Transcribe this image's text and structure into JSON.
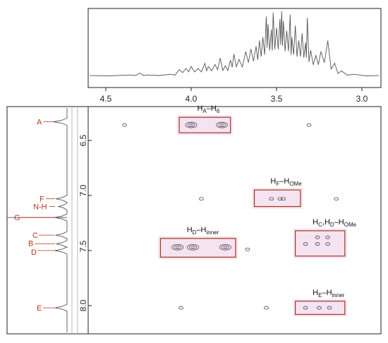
{
  "chart_data": {
    "type": "contour",
    "title": "",
    "xlabel": "",
    "ylabel": "",
    "x_axis": {
      "range": [
        4.62,
        2.9
      ],
      "ticks": [
        "4.5",
        "4.0",
        "3.5",
        "3.0"
      ],
      "tick_values": [
        4.5,
        4.0,
        3.5,
        3.0
      ]
    },
    "y_axis": {
      "range": [
        6.22,
        8.2
      ],
      "ticks": [
        "6.5",
        "7.0",
        "7.5",
        "8.0"
      ],
      "tick_values": [
        6.5,
        7.0,
        7.5,
        8.0
      ]
    },
    "grid": false,
    "top_projection": [
      [
        4.62,
        0.01
      ],
      [
        4.35,
        0.02
      ],
      [
        4.3,
        0.05
      ],
      [
        4.26,
        0.02
      ],
      [
        4.12,
        0.03
      ],
      [
        4.07,
        0.1
      ],
      [
        4.03,
        0.12
      ],
      [
        4.0,
        0.15
      ],
      [
        3.96,
        0.12
      ],
      [
        3.92,
        0.2
      ],
      [
        3.9,
        0.15
      ],
      [
        3.86,
        0.18
      ],
      [
        3.83,
        0.28
      ],
      [
        3.8,
        0.16
      ],
      [
        3.77,
        0.25
      ],
      [
        3.75,
        0.34
      ],
      [
        3.72,
        0.26
      ],
      [
        3.68,
        0.38
      ],
      [
        3.65,
        0.42
      ],
      [
        3.62,
        0.46
      ],
      [
        3.6,
        0.55
      ],
      [
        3.58,
        0.6
      ],
      [
        3.56,
        0.92
      ],
      [
        3.55,
        0.8
      ],
      [
        3.53,
        0.72
      ],
      [
        3.52,
        0.98
      ],
      [
        3.5,
        0.75
      ],
      [
        3.48,
        0.88
      ],
      [
        3.47,
        1.0
      ],
      [
        3.46,
        0.85
      ],
      [
        3.44,
        0.7
      ],
      [
        3.42,
        0.95
      ],
      [
        3.41,
        0.6
      ],
      [
        3.39,
        0.78
      ],
      [
        3.37,
        0.55
      ],
      [
        3.35,
        0.66
      ],
      [
        3.33,
        0.52
      ],
      [
        3.32,
        0.9
      ],
      [
        3.3,
        0.4
      ],
      [
        3.27,
        0.32
      ],
      [
        3.24,
        0.38
      ],
      [
        3.2,
        0.55
      ],
      [
        3.16,
        0.2
      ],
      [
        3.12,
        0.08
      ],
      [
        3.05,
        0.03
      ],
      [
        2.9,
        0.01
      ]
    ],
    "left_projection": {
      "peaks": [
        {
          "label": "A",
          "ppm": 6.33
        },
        {
          "label": "F",
          "ppm": 7.03
        },
        {
          "label": "N-H",
          "ppm": 7.1
        },
        {
          "label": "G",
          "ppm": 7.2
        },
        {
          "label": "C",
          "ppm": 7.36
        },
        {
          "label": "B",
          "ppm": 7.44
        },
        {
          "label": "D",
          "ppm": 7.5
        },
        {
          "label": "E",
          "ppm": 8.02
        }
      ]
    },
    "cross_peaks": [
      {
        "x": 4.39,
        "y": 6.36
      },
      {
        "x": 4.0,
        "y": 6.36
      },
      {
        "x": 3.82,
        "y": 6.36
      },
      {
        "x": 3.31,
        "y": 6.36
      },
      {
        "x": 3.94,
        "y": 7.03
      },
      {
        "x": 3.53,
        "y": 7.03
      },
      {
        "x": 3.48,
        "y": 7.03
      },
      {
        "x": 3.46,
        "y": 7.03
      },
      {
        "x": 3.15,
        "y": 7.03
      },
      {
        "x": 3.26,
        "y": 7.38
      },
      {
        "x": 3.2,
        "y": 7.38
      },
      {
        "x": 3.33,
        "y": 7.44
      },
      {
        "x": 3.26,
        "y": 7.44
      },
      {
        "x": 3.2,
        "y": 7.44
      },
      {
        "x": 4.08,
        "y": 7.47
      },
      {
        "x": 3.99,
        "y": 7.47
      },
      {
        "x": 3.8,
        "y": 7.47
      },
      {
        "x": 3.67,
        "y": 7.49
      },
      {
        "x": 4.06,
        "y": 8.02
      },
      {
        "x": 3.56,
        "y": 8.02
      },
      {
        "x": 3.33,
        "y": 8.02
      },
      {
        "x": 3.25,
        "y": 8.02
      },
      {
        "x": 3.19,
        "y": 8.02
      }
    ],
    "highlight_boxes": [
      {
        "label_main": "H",
        "label_sub1": "A",
        "label_mid": "–H",
        "label_sub2": "6",
        "x_range": [
          4.07,
          3.77
        ],
        "y_range": [
          6.29,
          6.43
        ]
      },
      {
        "label_main": "H",
        "label_sub1": "F",
        "label_mid": "–H",
        "label_sub2": "OMe",
        "x_range": [
          3.63,
          3.36
        ],
        "y_range": [
          6.95,
          7.1
        ]
      },
      {
        "label_main": "H",
        "label_sub1": "D",
        "label_mid": "–H",
        "label_sub2": "inner",
        "x_range": [
          4.18,
          3.74
        ],
        "y_range": [
          7.39,
          7.56
        ]
      },
      {
        "label_main": "H",
        "label_sub1": "C",
        "label_mid": ",H",
        "label_sub1b": "D",
        "label_mid2": "–H",
        "label_sub2": "OMe",
        "x_range": [
          3.39,
          3.1
        ],
        "y_range": [
          7.32,
          7.55
        ]
      },
      {
        "label_main": "H",
        "label_sub1": "E",
        "label_mid": "–H",
        "label_sub2": "inner",
        "x_range": [
          3.39,
          3.1
        ],
        "y_range": [
          7.96,
          8.08
        ]
      }
    ],
    "colors": {
      "box": "#a33a1a",
      "box_fill": "#f6e3f2",
      "peak_label": "#b03a1a",
      "line": "#555555"
    }
  }
}
